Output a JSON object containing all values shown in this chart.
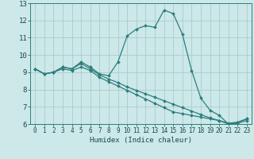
{
  "title": "",
  "xlabel": "Humidex (Indice chaleur)",
  "bg_color": "#cce8e8",
  "grid_color": "#aacccc",
  "line_color": "#2e7d7d",
  "xlim": [
    -0.5,
    23.5
  ],
  "ylim": [
    6,
    13
  ],
  "yticks": [
    6,
    7,
    8,
    9,
    10,
    11,
    12,
    13
  ],
  "xticks": [
    0,
    1,
    2,
    3,
    4,
    5,
    6,
    7,
    8,
    9,
    10,
    11,
    12,
    13,
    14,
    15,
    16,
    17,
    18,
    19,
    20,
    21,
    22,
    23
  ],
  "series": [
    [
      9.2,
      8.9,
      9.0,
      9.3,
      9.2,
      9.6,
      9.3,
      8.9,
      8.8,
      9.6,
      11.1,
      11.5,
      11.7,
      11.6,
      12.6,
      12.4,
      11.2,
      9.1,
      7.5,
      6.8,
      6.5,
      6.0,
      6.1,
      6.3
    ],
    [
      9.2,
      8.9,
      9.0,
      9.3,
      9.2,
      9.5,
      9.2,
      8.85,
      8.6,
      8.4,
      8.15,
      7.95,
      7.75,
      7.55,
      7.35,
      7.15,
      6.95,
      6.75,
      6.55,
      6.35,
      6.2,
      6.05,
      6.1,
      6.3
    ],
    [
      9.2,
      8.9,
      9.0,
      9.2,
      9.1,
      9.3,
      9.1,
      8.7,
      8.45,
      8.2,
      7.95,
      7.7,
      7.45,
      7.2,
      6.95,
      6.7,
      6.6,
      6.5,
      6.4,
      6.3,
      6.2,
      6.0,
      6.05,
      6.2
    ]
  ]
}
